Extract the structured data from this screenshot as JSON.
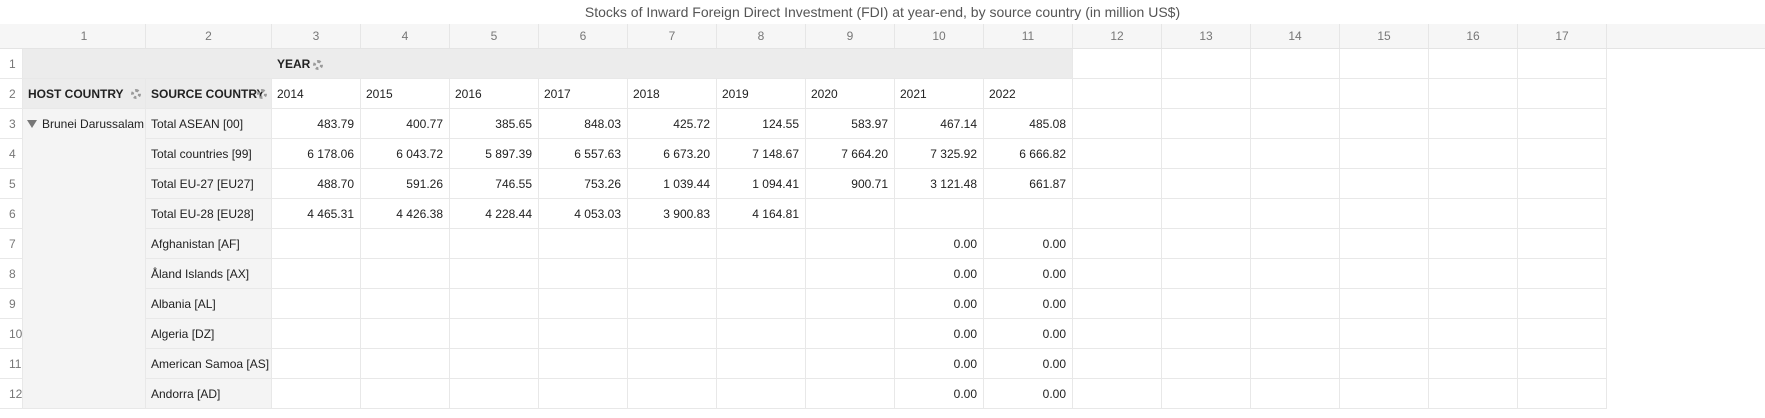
{
  "title": "Stocks of Inward Foreign Direct Investment (FDI) at year-end, by source country (in million US$)",
  "column_numbers": [
    "1",
    "2",
    "3",
    "4",
    "5",
    "6",
    "7",
    "8",
    "9",
    "10",
    "11",
    "12",
    "13",
    "14",
    "15",
    "16",
    "17"
  ],
  "row_numbers": [
    "1",
    "2",
    "3",
    "4",
    "5",
    "6",
    "7",
    "8",
    "9",
    "10",
    "11",
    "12"
  ],
  "pivot": {
    "year_header": "YEAR",
    "host_country_header": "HOST COUNTRY",
    "source_country_header": "SOURCE COUNTRY",
    "host_country": "Brunei Darussalam",
    "years": [
      "2014",
      "2015",
      "2016",
      "2017",
      "2018",
      "2019",
      "2020",
      "2021",
      "2022"
    ],
    "rows": [
      {
        "source": "Total ASEAN [00]",
        "values": [
          "483.79",
          "400.77",
          "385.65",
          "848.03",
          "425.72",
          "124.55",
          "583.97",
          "467.14",
          "485.08"
        ]
      },
      {
        "source": "Total countries [99]",
        "values": [
          "6 178.06",
          "6 043.72",
          "5 897.39",
          "6 557.63",
          "6 673.20",
          "7 148.67",
          "7 664.20",
          "7 325.92",
          "6 666.82"
        ]
      },
      {
        "source": "Total EU-27 [EU27]",
        "values": [
          "488.70",
          "591.26",
          "746.55",
          "753.26",
          "1 039.44",
          "1 094.41",
          "900.71",
          "3 121.48",
          "661.87"
        ]
      },
      {
        "source": "Total EU-28 [EU28]",
        "values": [
          "4 465.31",
          "4 426.38",
          "4 228.44",
          "4 053.03",
          "3 900.83",
          "4 164.81",
          "",
          "",
          ""
        ]
      },
      {
        "source": "Afghanistan [AF]",
        "values": [
          "",
          "",
          "",
          "",
          "",
          "",
          "",
          "0.00",
          "0.00"
        ]
      },
      {
        "source": "Åland Islands [AX]",
        "values": [
          "",
          "",
          "",
          "",
          "",
          "",
          "",
          "0.00",
          "0.00"
        ]
      },
      {
        "source": "Albania [AL]",
        "values": [
          "",
          "",
          "",
          "",
          "",
          "",
          "",
          "0.00",
          "0.00"
        ]
      },
      {
        "source": "Algeria [DZ]",
        "values": [
          "",
          "",
          "",
          "",
          "",
          "",
          "",
          "0.00",
          "0.00"
        ]
      },
      {
        "source": "American Samoa [AS]",
        "values": [
          "",
          "",
          "",
          "",
          "",
          "",
          "",
          "0.00",
          "0.00"
        ]
      },
      {
        "source": "Andorra [AD]",
        "values": [
          "",
          "",
          "",
          "",
          "",
          "",
          "",
          "0.00",
          "0.00"
        ]
      }
    ]
  },
  "icons": {
    "settings": "gear-icon",
    "expand": "triangle-down-icon"
  }
}
